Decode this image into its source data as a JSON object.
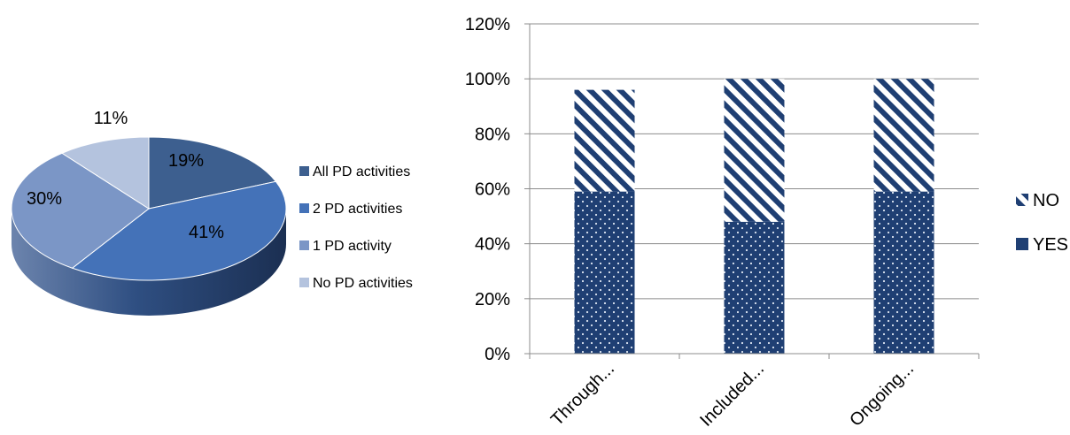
{
  "chart_data": [
    {
      "type": "pie",
      "labels": [
        "All PD activities",
        "2 PD activities",
        "1 PD activity",
        "No PD activities"
      ],
      "values": [
        19,
        41,
        30,
        11
      ],
      "value_labels": [
        "19%",
        "41%",
        "30%",
        "11%"
      ],
      "colors": [
        "#3d5f8f",
        "#4472b8",
        "#7b96c6",
        "#b4c3de"
      ],
      "legend_position": "right",
      "style": "3d"
    },
    {
      "type": "bar",
      "stacked": true,
      "categories": [
        "Through...",
        "Included...",
        "Ongoing..."
      ],
      "series": [
        {
          "name": "YES",
          "values": [
            59,
            48,
            59
          ],
          "color": "#1f3f73",
          "pattern": "dotted"
        },
        {
          "name": "NO",
          "values": [
            37,
            52,
            41
          ],
          "color": "#1f3f73",
          "pattern": "diagonal-stripes"
        }
      ],
      "ylim": [
        0,
        120
      ],
      "yticks": [
        "0%",
        "20%",
        "40%",
        "60%",
        "80%",
        "100%",
        "120%"
      ],
      "grid": true,
      "legend_position": "right"
    }
  ]
}
